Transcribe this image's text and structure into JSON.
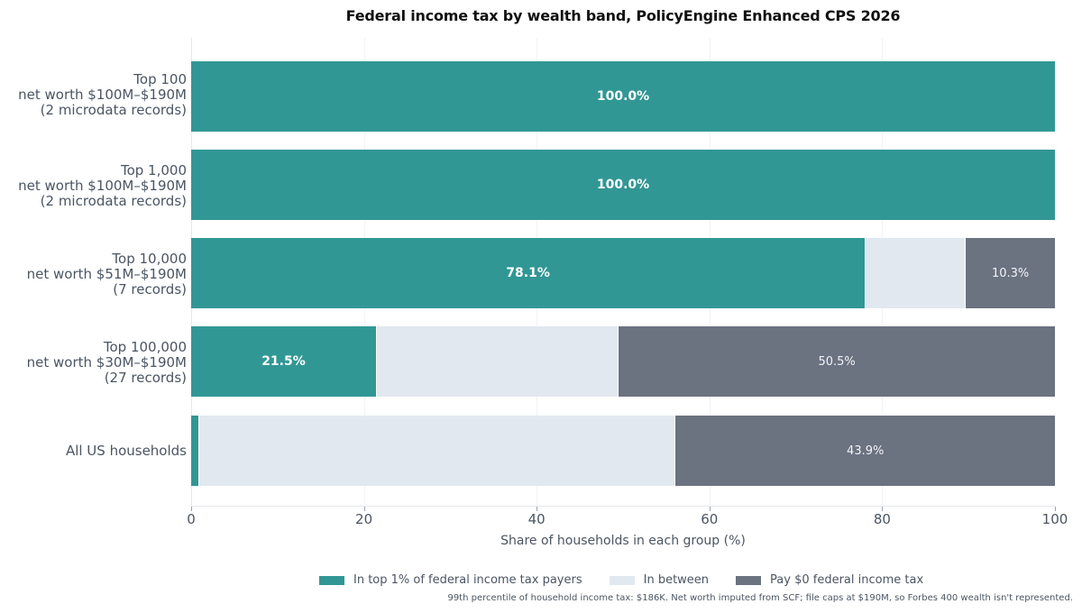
{
  "title": "Federal income tax by wealth band, PolicyEngine Enhanced CPS 2026",
  "colors": {
    "top1": "#319795",
    "between": "#e2e8f0",
    "zero": "#6b7280"
  },
  "legend": {
    "top1": "In top 1% of federal income tax payers",
    "between": "In between",
    "zero": "Pay $0 federal income tax"
  },
  "xaxis": {
    "label": "Share of households in each group (%)",
    "ticks": [
      "0",
      "20",
      "40",
      "60",
      "80",
      "100"
    ]
  },
  "rows": [
    {
      "line1": "Top 100",
      "line2": "net worth $100M–$190M",
      "line3": "(2 microdata records)",
      "top1": 100.0,
      "between": 0.0,
      "zero": 0.0,
      "top1_label": "100.0%",
      "zero_label": ""
    },
    {
      "line1": "Top 1,000",
      "line2": "net worth $100M–$190M",
      "line3": "(2 microdata records)",
      "top1": 100.0,
      "between": 0.0,
      "zero": 0.0,
      "top1_label": "100.0%",
      "zero_label": ""
    },
    {
      "line1": "Top 10,000",
      "line2": "net worth $51M–$190M",
      "line3": "(7 records)",
      "top1": 78.1,
      "between": 11.6,
      "zero": 10.3,
      "top1_label": "78.1%",
      "zero_label": "10.3%"
    },
    {
      "line1": "Top 100,000",
      "line2": "net worth $30M–$190M",
      "line3": "(27 records)",
      "top1": 21.5,
      "between": 28.0,
      "zero": 50.5,
      "top1_label": "21.5%",
      "zero_label": "50.5%"
    },
    {
      "line1": "All US households",
      "line2": "",
      "line3": "",
      "top1": 0.9,
      "between": 55.2,
      "zero": 43.9,
      "top1_label": "",
      "zero_label": "43.9%"
    }
  ],
  "footnote": "99th percentile of household income tax: $186K. Net worth imputed from SCF; file caps at $190M, so Forbes 400 wealth isn't represented.",
  "chart_data": {
    "type": "bar",
    "orientation": "horizontal",
    "stacked": true,
    "title": "Federal income tax by wealth band, PolicyEngine Enhanced CPS 2026",
    "categories": [
      "Top 100 net worth $100M–$190M (2 microdata records)",
      "Top 1,000 net worth $100M–$190M (2 microdata records)",
      "Top 10,000 net worth $51M–$190M (7 records)",
      "Top 100,000 net worth $30M–$190M (27 records)",
      "All US households"
    ],
    "series": [
      {
        "name": "In top 1% of federal income tax payers",
        "color": "#319795",
        "values": [
          100.0,
          100.0,
          78.1,
          21.5,
          0.9
        ]
      },
      {
        "name": "In between",
        "color": "#e2e8f0",
        "values": [
          0.0,
          0.0,
          11.6,
          28.0,
          55.2
        ]
      },
      {
        "name": "Pay $0 federal income tax",
        "color": "#6b7280",
        "values": [
          0.0,
          0.0,
          10.3,
          50.5,
          43.9
        ]
      }
    ],
    "data_labels": [
      "100.0%",
      "100.0%",
      "78.1%",
      "10.3%",
      "21.5%",
      "50.5%",
      "43.9%"
    ],
    "xlabel": "Share of households in each group (%)",
    "ylabel": "",
    "xlim": [
      0,
      100
    ],
    "xticks": [
      0,
      20,
      40,
      60,
      80,
      100
    ],
    "grid": "vertical, light",
    "legend_position": "bottom",
    "annotation": "99th percentile of household income tax: $186K. Net worth imputed from SCF; file caps at $190M, so Forbes 400 wealth isn't represented."
  }
}
